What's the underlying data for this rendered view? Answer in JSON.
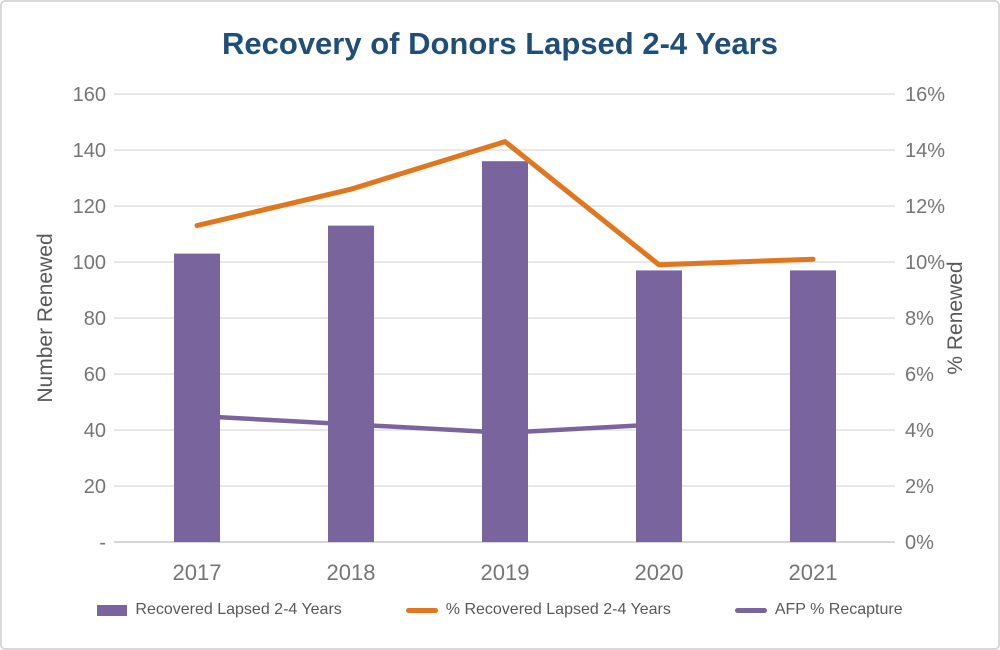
{
  "chart_data": {
    "type": "bar",
    "combo": "bar+line",
    "title": "Recovery of Donors Lapsed 2-4 Years",
    "categories": [
      "2017",
      "2018",
      "2019",
      "2020",
      "2021"
    ],
    "bar_series": {
      "name": "Recovered Lapsed 2-4 Years",
      "axis": "left",
      "values": [
        103,
        113,
        136,
        97,
        97
      ],
      "color": "#7a649e"
    },
    "line_series": [
      {
        "name": "% Recovered Lapsed 2-4 Years",
        "axis": "right",
        "values": [
          11.3,
          12.6,
          14.3,
          9.9,
          10.1
        ],
        "color": "#e0771e",
        "in_front_of_bars": true
      },
      {
        "name": "AFP % Recapture",
        "axis": "right",
        "values": [
          4.5,
          4.2,
          3.9,
          4.2,
          null
        ],
        "color": "#7a649e",
        "in_front_of_bars": false
      }
    ],
    "left_axis": {
      "label": "Number Renewed",
      "min": 0,
      "max": 160,
      "tick_step": 20,
      "tick_labels": [
        "-",
        "20",
        "40",
        "60",
        "80",
        "100",
        "120",
        "140",
        "160"
      ]
    },
    "right_axis": {
      "label": "% Renewed",
      "min": 0,
      "max": 16,
      "tick_step": 2,
      "tick_labels": [
        "0%",
        "2%",
        "4%",
        "6%",
        "8%",
        "10%",
        "12%",
        "14%",
        "16%"
      ]
    },
    "grid": true,
    "legend_position": "bottom",
    "colors": {
      "title": "#1f4e79",
      "tick_text": "#757575",
      "axis_text": "#595959",
      "gridline": "#d9d9d9",
      "axis_line": "#bfbfbf"
    }
  }
}
